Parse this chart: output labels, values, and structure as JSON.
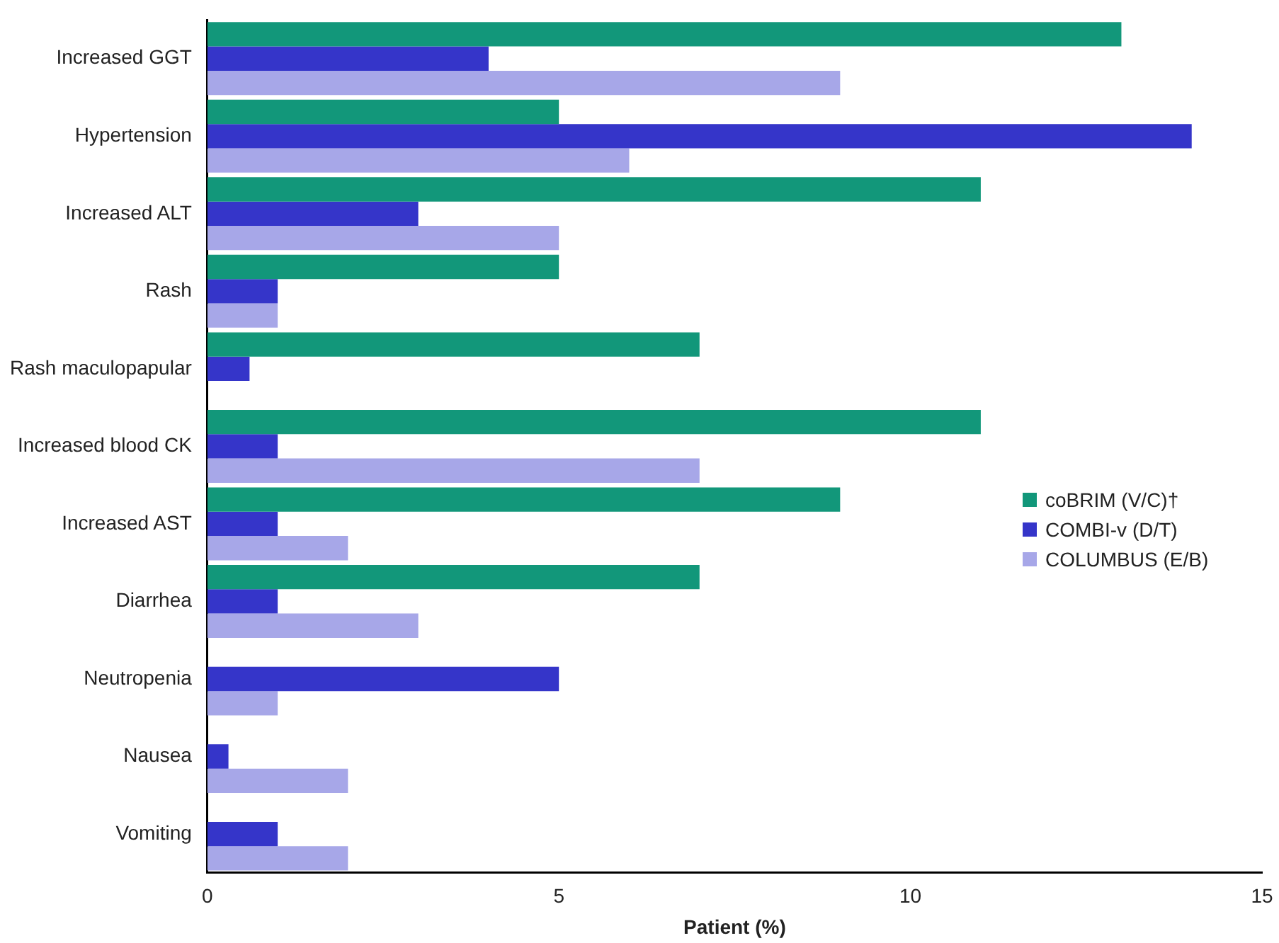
{
  "chart_data": {
    "type": "bar",
    "orientation": "horizontal",
    "xlabel": "Patient (%)",
    "categories": [
      "Increased GGT",
      "Hypertension",
      "Increased ALT",
      "Rash",
      "Rash maculopapular",
      "Increased blood CK",
      "Increased AST",
      "Diarrhea",
      "Neutropenia",
      "Nausea",
      "Vomiting"
    ],
    "series": [
      {
        "name": "coBRIM (V/C)†",
        "color": "#12977a",
        "values": [
          13,
          5,
          11,
          5,
          7,
          11,
          9,
          7,
          null,
          null,
          null
        ]
      },
      {
        "name": "COMBI-v (D/T)",
        "color": "#3535c9",
        "values": [
          4,
          14,
          3,
          1,
          0.6,
          1,
          1,
          1,
          5,
          0.3,
          1
        ]
      },
      {
        "name": "COLUMBUS (E/B)",
        "color": "#a7a7e8",
        "values": [
          9,
          6,
          5,
          1,
          null,
          7,
          2,
          3,
          1,
          2,
          2
        ]
      }
    ],
    "xlim": [
      0,
      15
    ],
    "xticks": [
      0,
      5,
      10,
      15
    ],
    "grid": false,
    "legend": "right"
  }
}
